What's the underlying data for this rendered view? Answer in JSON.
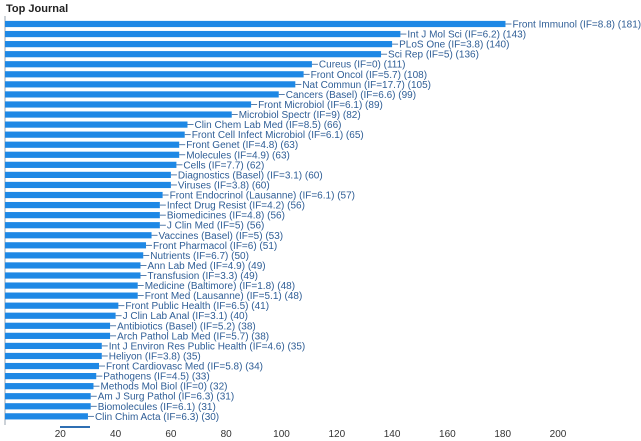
{
  "title": "Top Journal",
  "colors": {
    "bar": "#1e88e5",
    "label": "#2f5e96",
    "axis_bar": "#2f6fb3"
  },
  "chart_data": {
    "type": "bar",
    "orientation": "horizontal",
    "title": "Top Journal",
    "xlim": [
      0,
      200
    ],
    "xticks": [
      20,
      40,
      60,
      80,
      100,
      120,
      140,
      160,
      180,
      200
    ],
    "labels": [
      "Front Immunol (IF=8.8) (181)",
      "Int J Mol Sci (IF=6.2) (143)",
      "PLoS One (IF=3.8) (140)",
      "Sci Rep (IF=5) (136)",
      "Cureus (IF=0) (111)",
      "Front Oncol (IF=5.7) (108)",
      "Nat Commun (IF=17.7) (105)",
      "Cancers (Basel) (IF=6.6) (99)",
      "Front Microbiol (IF=6.1) (89)",
      "Microbiol Spectr (IF=9) (82)",
      "Clin Chem Lab Med (IF=8.5) (66)",
      "Front Cell Infect Microbiol (IF=6.1) (65)",
      "Front Genet (IF=4.8) (63)",
      "Molecules (IF=4.9) (63)",
      "Cells (IF=7.7) (62)",
      "Diagnostics (Basel) (IF=3.1) (60)",
      "Viruses (IF=3.8) (60)",
      "Front Endocrinol (Lausanne) (IF=6.1) (57)",
      "Infect Drug Resist (IF=4.2) (56)",
      "Biomedicines (IF=4.8) (56)",
      "J Clin Med (IF=5) (56)",
      "Vaccines (Basel) (IF=5) (53)",
      "Front Pharmacol (IF=6) (51)",
      "Nutrients (IF=6.7) (50)",
      "Ann Lab Med (IF=4.9) (49)",
      "Transfusion (IF=3.3) (49)",
      "Medicine (Baltimore) (IF=1.8) (48)",
      "Front Med (Lausanne) (IF=5.1) (48)",
      "Front Public Health (IF=6.5) (41)",
      "J Clin Lab Anal (IF=3.1) (40)",
      "Antibiotics (Basel) (IF=5.2) (38)",
      "Arch Pathol Lab Med (IF=5.7) (38)",
      "Int J Environ Res Public Health (IF=4.6) (35)",
      "Heliyon (IF=3.8) (35)",
      "Front Cardiovasc Med (IF=5.8) (34)",
      "Pathogens (IF=4.5) (33)",
      "Methods Mol Biol (IF=0) (32)",
      "Am J Surg Pathol (IF=6.3) (31)",
      "Biomolecules (IF=6.1) (31)",
      "Clin Chim Acta (IF=6.3) (30)"
    ],
    "values": [
      181,
      143,
      140,
      136,
      111,
      108,
      105,
      99,
      89,
      82,
      66,
      65,
      63,
      63,
      62,
      60,
      60,
      57,
      56,
      56,
      56,
      53,
      51,
      50,
      49,
      49,
      48,
      48,
      41,
      40,
      38,
      38,
      35,
      35,
      34,
      33,
      32,
      31,
      31,
      30
    ],
    "grid": false
  }
}
